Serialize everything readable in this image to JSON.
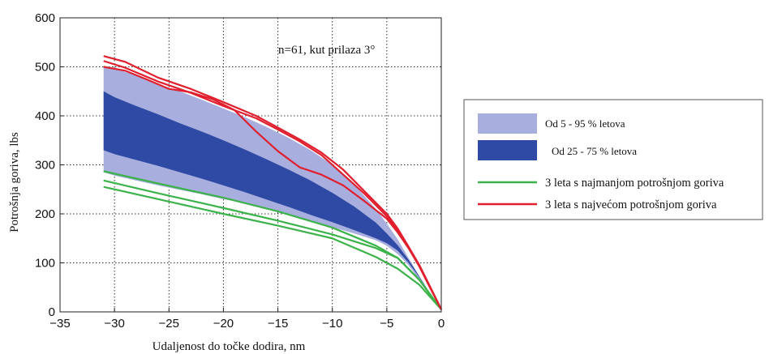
{
  "chart_data": {
    "type": "area",
    "annotation": "n=61, kut prilaza 3°",
    "xlabel": "Udaljenost do točke dodira, nm",
    "ylabel": "Potrošnja goriva, lbs",
    "xlim": [
      -35,
      0
    ],
    "ylim": [
      0,
      600
    ],
    "xticks": [
      -35,
      -30,
      -25,
      -20,
      -15,
      -10,
      -5,
      0
    ],
    "yticks": [
      0,
      100,
      200,
      300,
      400,
      500,
      600
    ],
    "grid": true,
    "legend_position": "right",
    "colors": {
      "band_5_95": "#a8aede",
      "band_25_75": "#2e4aa5",
      "green": "#3cb34a",
      "red": "#e0202e"
    },
    "bands": [
      {
        "name": "Od 5 - 95 % letova",
        "x": [
          -31,
          -30,
          -28,
          -26,
          -24,
          -22,
          -20,
          -18,
          -16,
          -14,
          -12,
          -10,
          -8,
          -6,
          -5,
          -4,
          -3,
          -2,
          -1,
          0
        ],
        "lower": [
          285,
          278,
          268,
          258,
          249,
          240,
          230,
          222,
          210,
          198,
          186,
          173,
          160,
          146,
          135,
          118,
          95,
          65,
          35,
          5
        ],
        "upper": [
          502,
          497,
          482,
          465,
          450,
          433,
          415,
          397,
          377,
          355,
          330,
          300,
          260,
          210,
          180,
          148,
          110,
          72,
          35,
          5
        ]
      },
      {
        "name": "Od 25 - 75 % letova",
        "x": [
          -31,
          -30,
          -28,
          -26,
          -24,
          -22,
          -20,
          -18,
          -16,
          -14,
          -12,
          -10,
          -8,
          -6,
          -5,
          -4,
          -3,
          -2,
          -1,
          0
        ],
        "lower": [
          330,
          322,
          310,
          298,
          285,
          272,
          258,
          244,
          229,
          214,
          198,
          183,
          167,
          150,
          140,
          125,
          100,
          70,
          37,
          5
        ],
        "upper": [
          450,
          438,
          420,
          403,
          385,
          368,
          350,
          331,
          311,
          290,
          268,
          243,
          215,
          182,
          160,
          136,
          106,
          72,
          37,
          5
        ]
      }
    ],
    "series": [
      {
        "name": "3 leta s najmanjom potrošnjom goriva",
        "color": "#3cb34a",
        "lines": [
          {
            "x": [
              -31,
              -26,
              -20,
              -15,
              -10,
              -6,
              -4,
              -2,
              0
            ],
            "y": [
              287,
              262,
              233,
              205,
              172,
              135,
              110,
              65,
              5
            ]
          },
          {
            "x": [
              -31,
              -26,
              -20,
              -15,
              -10,
              -6,
              -4,
              -2,
              0
            ],
            "y": [
              268,
              242,
              212,
              186,
              158,
              130,
              110,
              65,
              5
            ]
          },
          {
            "x": [
              -31,
              -26,
              -20,
              -15,
              -10,
              -6,
              -4,
              -2,
              0
            ],
            "y": [
              255,
              230,
              200,
              176,
              150,
              112,
              88,
              55,
              5
            ]
          }
        ]
      },
      {
        "name": "3 leta s najvećom potrošnjom goriva",
        "color": "#e0202e",
        "lines": [
          {
            "x": [
              -31,
              -29,
              -26,
              -23,
              -20,
              -17,
              -15,
              -13,
              -11,
              -9,
              -7,
              -5,
              -4,
              -3,
              -2,
              -1,
              0
            ],
            "y": [
              522,
              510,
              478,
              455,
              428,
              400,
              376,
              352,
              325,
              290,
              245,
              200,
              170,
              133,
              95,
              50,
              5
            ]
          },
          {
            "x": [
              -31,
              -29,
              -26,
              -23,
              -20,
              -17,
              -15,
              -13,
              -11,
              -9,
              -7,
              -5,
              -4,
              -3,
              -2,
              -1,
              0
            ],
            "y": [
              512,
              498,
              470,
              447,
              420,
              395,
              372,
              348,
              320,
              280,
              240,
              195,
              165,
              130,
              93,
              50,
              5
            ]
          },
          {
            "x": [
              -31,
              -29,
              -27,
              -25,
              -23,
              -21,
              -19,
              -17,
              -15,
              -13,
              -11,
              -9,
              -7,
              -5,
              -4,
              -3,
              -2,
              -1,
              0
            ],
            "y": [
              500,
              492,
              474,
              455,
              448,
              434,
              412,
              368,
              328,
              295,
              280,
              258,
              225,
              190,
              162,
              130,
              92,
              48,
              5
            ]
          }
        ]
      }
    ]
  }
}
